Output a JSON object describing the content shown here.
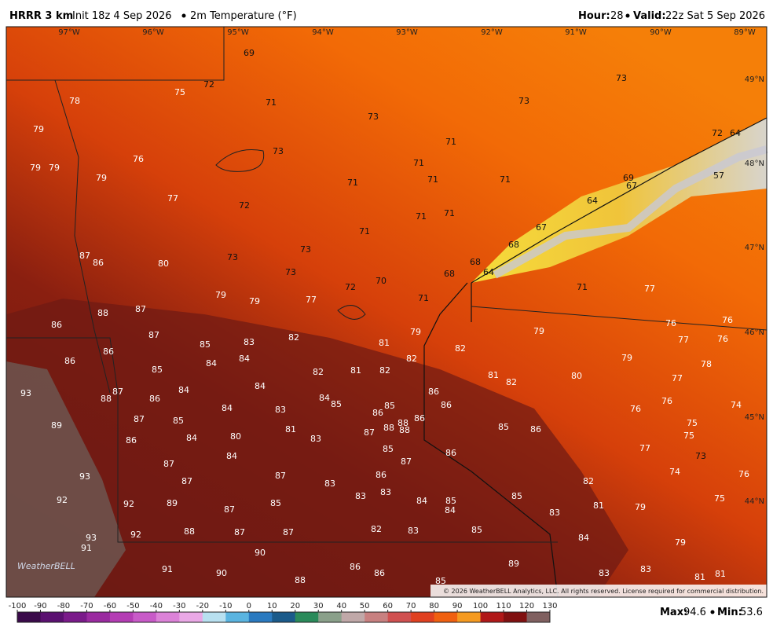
{
  "header": {
    "model": "HRRR 3 km",
    "init": "Init 18z 4 Sep 2026",
    "field": "2m Temperature (°F)",
    "hour_label": "Hour:",
    "hour": "28",
    "valid_label": "Valid:",
    "valid": "22z Sat 5 Sep 2026"
  },
  "longitudes": [
    "97°W",
    "96°W",
    "95°W",
    "94°W",
    "93°W",
    "92°W",
    "91°W",
    "90°W",
    "89°W"
  ],
  "latitudes": [
    "49°N",
    "48°N",
    "47°N",
    "46°N",
    "45°N",
    "44°N"
  ],
  "map_labels": [
    69,
    72,
    75,
    78,
    71,
    73,
    73,
    73,
    79,
    71,
    72,
    64,
    73,
    76,
    79,
    79,
    79,
    71,
    71,
    71,
    71,
    57,
    69,
    67,
    77,
    72,
    64,
    71,
    71,
    71,
    67,
    68,
    73,
    73,
    87,
    86,
    80,
    68,
    64,
    68,
    73,
    70,
    72,
    71,
    77,
    79,
    79,
    77,
    71,
    87,
    88,
    86,
    76,
    76,
    79,
    79,
    87,
    82,
    83,
    85,
    81,
    82,
    77,
    76,
    86,
    86,
    84,
    82,
    79,
    85,
    84,
    82,
    81,
    82,
    81,
    82,
    80,
    78,
    77,
    93,
    87,
    88,
    84,
    84,
    86,
    84,
    85,
    86,
    86,
    76,
    74,
    84,
    83,
    85,
    86,
    86,
    76,
    89,
    87,
    85,
    81,
    88,
    88,
    88,
    87,
    85,
    86,
    75,
    75,
    80,
    84,
    83,
    86,
    85,
    86,
    77,
    73,
    84,
    87,
    87,
    93,
    87,
    86,
    74,
    76,
    87,
    83,
    82,
    92,
    92,
    89,
    85,
    83,
    83,
    84,
    85,
    85,
    75,
    81,
    79,
    87,
    84,
    83,
    92,
    88,
    87,
    87,
    82,
    83,
    85,
    93,
    91,
    84,
    79,
    90,
    91,
    90,
    86,
    86,
    89,
    83,
    83,
    81,
    81,
    88,
    85
  ],
  "copyright": "© 2026 WeatherBELL Analytics, LLC. All rights reserved. License required for commercial distribution.",
  "logo": "WeatherBELL",
  "colorbar_ticks": [
    -100,
    -90,
    -80,
    -70,
    -60,
    -50,
    -40,
    -30,
    -20,
    -10,
    0,
    10,
    20,
    30,
    40,
    50,
    60,
    70,
    80,
    90,
    100,
    110,
    120,
    130
  ],
  "stats": {
    "max_label": "Max:",
    "max": "94.6",
    "min_label": "Min:",
    "min": "53.6"
  }
}
